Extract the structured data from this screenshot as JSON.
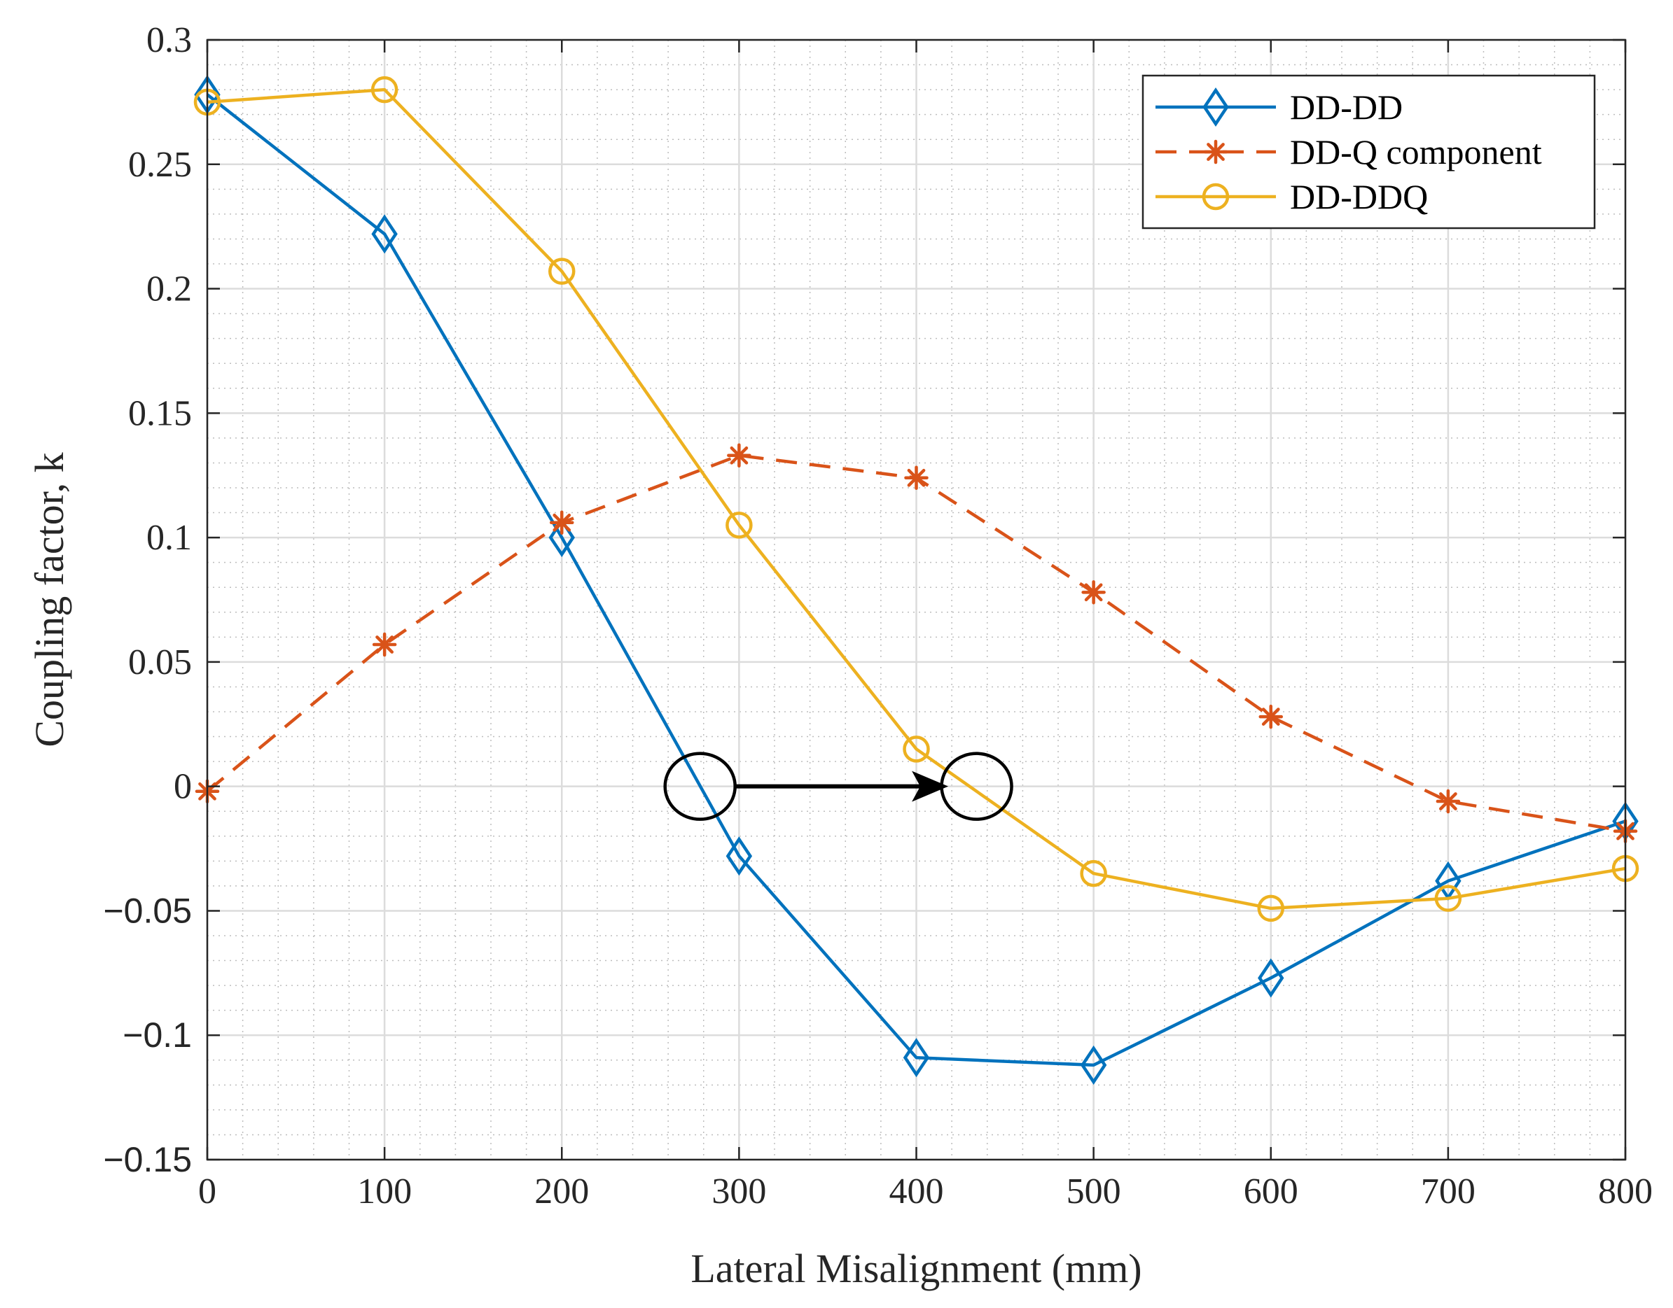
{
  "chart_data": {
    "type": "line",
    "title": "",
    "xlabel": "Lateral Misalignment (mm)",
    "ylabel": "Coupling factor, k",
    "xlim": [
      0,
      800
    ],
    "ylim": [
      -0.15,
      0.3
    ],
    "grid": true,
    "minor_grid": true,
    "legend_position": "top-right",
    "x_ticks": [
      0,
      100,
      200,
      300,
      400,
      500,
      600,
      700,
      800
    ],
    "x_tick_labels": [
      "0",
      "100",
      "200",
      "300",
      "400",
      "500",
      "600",
      "700",
      "800"
    ],
    "y_ticks": [
      0.3,
      0.25,
      0.2,
      0.15,
      0.1,
      0.05,
      0,
      -0.05,
      -0.1,
      -0.15
    ],
    "y_tick_labels": [
      "0.3",
      "0.25",
      "0.2",
      "0.15",
      "0.1",
      "0.05",
      "0",
      "−0.05",
      "−0.1",
      "−0.15"
    ],
    "x": [
      0,
      100,
      200,
      300,
      400,
      500,
      600,
      700,
      800
    ],
    "series": [
      {
        "name": "DD-DD",
        "color": "#0072BD",
        "marker": "diamond",
        "line_style": "solid",
        "values": [
          0.278,
          0.222,
          0.1,
          -0.028,
          -0.109,
          -0.112,
          -0.077,
          -0.038,
          -0.014
        ]
      },
      {
        "name": "DD-Q component",
        "color": "#D95319",
        "marker": "asterisk",
        "line_style": "dashed",
        "values": [
          -0.002,
          0.057,
          0.106,
          0.133,
          0.124,
          0.078,
          0.028,
          -0.006,
          -0.018
        ]
      },
      {
        "name": "DD-DDQ",
        "color": "#EDB120",
        "marker": "circle",
        "line_style": "solid",
        "values": [
          0.275,
          0.28,
          0.207,
          0.105,
          0.015,
          -0.035,
          -0.049,
          -0.045,
          -0.033
        ]
      }
    ],
    "annotations": [
      {
        "type": "ellipse",
        "x": 278,
        "y": 0
      },
      {
        "type": "ellipse",
        "x": 434,
        "y": 0
      },
      {
        "type": "arrow",
        "from": [
          298,
          0
        ],
        "to": [
          418,
          0
        ]
      }
    ]
  }
}
